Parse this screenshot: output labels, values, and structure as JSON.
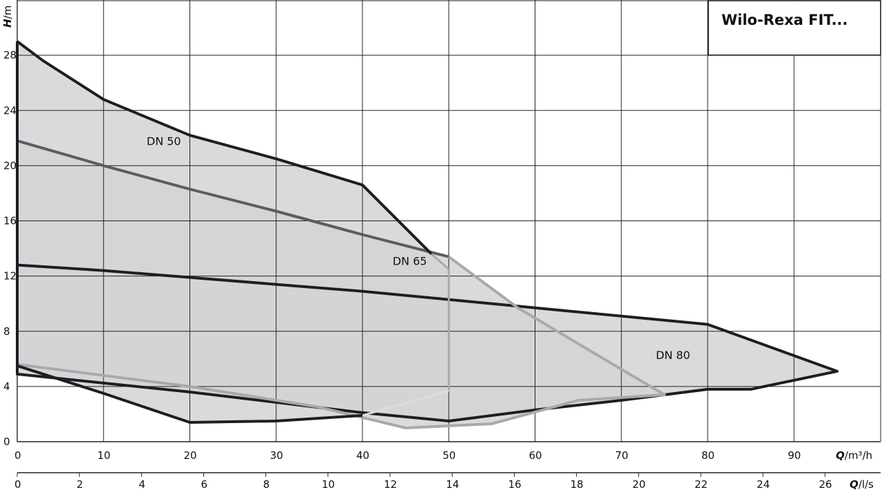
{
  "chart_data": {
    "type": "line",
    "title": "Wilo-Rexa FIT...",
    "ylabel_var": "H",
    "ylabel_unit": "/m",
    "xlabel_m3h_var": "Q",
    "xlabel_m3h_unit": "/m³/h",
    "xlabel_ls_var": "Q",
    "xlabel_ls_unit": "/l/s",
    "xlim": [
      0,
      100
    ],
    "ylim": [
      0,
      32
    ],
    "grid": true,
    "y_ticks": [
      0,
      4,
      8,
      12,
      16,
      20,
      24,
      28
    ],
    "x_ticks_m3h": [
      0,
      10,
      20,
      30,
      40,
      50,
      60,
      70,
      80,
      90
    ],
    "x_ticks_ls": [
      0,
      2,
      4,
      6,
      8,
      10,
      12,
      14,
      16,
      18,
      20,
      22,
      24,
      26
    ],
    "regions": [
      {
        "name": "DN 50",
        "label_at": [
          15,
          21.5
        ],
        "boundary": [
          [
            0,
            29
          ],
          [
            3,
            27.6
          ],
          [
            10,
            24.8
          ],
          [
            20,
            22.2
          ],
          [
            30,
            20.5
          ],
          [
            40,
            18.6
          ],
          [
            48,
            13.6
          ],
          [
            50,
            12.5
          ],
          [
            50,
            3.7
          ],
          [
            40,
            1.9
          ],
          [
            30,
            1.5
          ],
          [
            20,
            1.4
          ],
          [
            10,
            3.5
          ],
          [
            0,
            5.5
          ]
        ]
      },
      {
        "name": "DN 65",
        "label_at": [
          43.5,
          12.8
        ],
        "boundary": [
          [
            0,
            21.8
          ],
          [
            10,
            20
          ],
          [
            20,
            18.3
          ],
          [
            30,
            16.7
          ],
          [
            40,
            15
          ],
          [
            50,
            13.4
          ],
          [
            58,
            9.7
          ],
          [
            65,
            7.1
          ],
          [
            75,
            3.4
          ],
          [
            65,
            3
          ],
          [
            55,
            1.3
          ],
          [
            45,
            1
          ],
          [
            35,
            2.5
          ],
          [
            20,
            4
          ],
          [
            0,
            5.6
          ]
        ]
      },
      {
        "name": "DN 80",
        "label_at": [
          74,
          6
        ],
        "boundary": [
          [
            0,
            12.8
          ],
          [
            10,
            12.4
          ],
          [
            20,
            11.9
          ],
          [
            30,
            11.4
          ],
          [
            40,
            10.9
          ],
          [
            50,
            10.3
          ],
          [
            60,
            9.7
          ],
          [
            80,
            8.5
          ],
          [
            95,
            5.1
          ],
          [
            85,
            3.8
          ],
          [
            80,
            3.8
          ],
          [
            70,
            3
          ],
          [
            60,
            2.3
          ],
          [
            50,
            1.5
          ],
          [
            40,
            2.1
          ],
          [
            20,
            3.6
          ],
          [
            0,
            4.9
          ]
        ]
      }
    ]
  },
  "colors": {
    "fill": "#d3d4d6",
    "dn50_line": "#1e1e22",
    "dn65_upper_line": "#5c5c60",
    "dn65_lower_line": "#a8a9ab",
    "dn80_line": "#1e1e22"
  }
}
